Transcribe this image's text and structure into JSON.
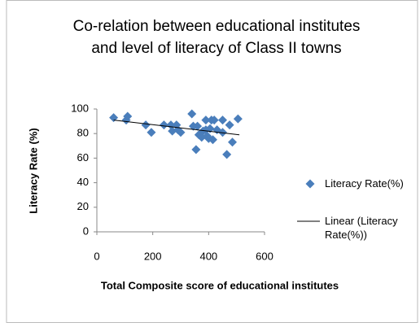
{
  "chart_data": {
    "type": "scatter",
    "title": "Co-relation between educational institutes and level of literacy of Class II towns",
    "x_label": "Total  Composite score of educational institutes",
    "y_label": "Literacy Rate (%)",
    "xlim": [
      0,
      600
    ],
    "xticks": [
      0,
      200,
      400,
      600
    ],
    "ylim": [
      0,
      100
    ],
    "yticks": [
      0,
      20,
      40,
      60,
      80,
      100
    ],
    "grid": false,
    "legend": "right",
    "series": [
      {
        "name": "Literacy Rate(%)",
        "color": "#4a7ebb",
        "marker": "diamond",
        "x": [
          60,
          105,
          110,
          175,
          195,
          240,
          265,
          270,
          285,
          290,
          300,
          340,
          345,
          355,
          360,
          365,
          375,
          380,
          390,
          390,
          395,
          400,
          405,
          410,
          415,
          420,
          430,
          450,
          450,
          465,
          475,
          485,
          505
        ],
        "values": [
          93,
          91,
          94,
          87,
          81,
          87,
          87,
          82,
          87,
          83,
          81,
          96,
          86,
          67,
          86,
          79,
          77,
          82,
          91,
          83,
          78,
          76,
          84,
          91,
          75,
          91,
          83,
          91,
          81,
          63,
          87,
          73,
          92
        ]
      },
      {
        "name": "Linear (Literacy Rate(%))",
        "color": "#000000",
        "marker": "line",
        "x": [
          60,
          510
        ],
        "values": [
          91,
          79
        ]
      }
    ]
  }
}
